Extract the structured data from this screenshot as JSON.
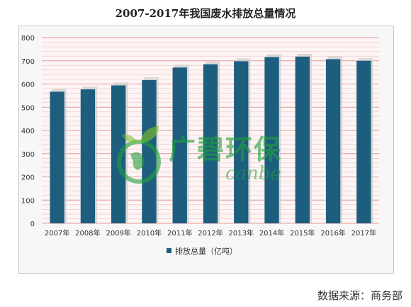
{
  "source_label": "数据来源：商务部",
  "watermark": {
    "brand_cn": "广碧环保",
    "brand_en": "canbe",
    "color": "#22a03c"
  },
  "colors": {
    "bar": "#1d5e7e",
    "bar_shadow": "#cfcfcf",
    "grid": "#e08a8a",
    "plot_bg": "#fdf5f5"
  },
  "chart_data": {
    "type": "bar",
    "title": "2007-2017年我国废水排放总量情况",
    "xlabel": "",
    "ylabel": "",
    "categories": [
      "2007年",
      "2008年",
      "2009年",
      "2010年",
      "2011年",
      "2012年",
      "2013年",
      "2014年",
      "2015年",
      "2016年",
      "2017年"
    ],
    "series": [
      {
        "name": "排放总量（亿吨）",
        "values": [
          567,
          577,
          594,
          617,
          671,
          685,
          698,
          716,
          718,
          707,
          700
        ]
      }
    ],
    "ylim": [
      0,
      800
    ],
    "yticks": [
      0,
      100,
      200,
      300,
      400,
      500,
      600,
      700,
      800
    ],
    "grid": true,
    "legend": "bottom"
  }
}
